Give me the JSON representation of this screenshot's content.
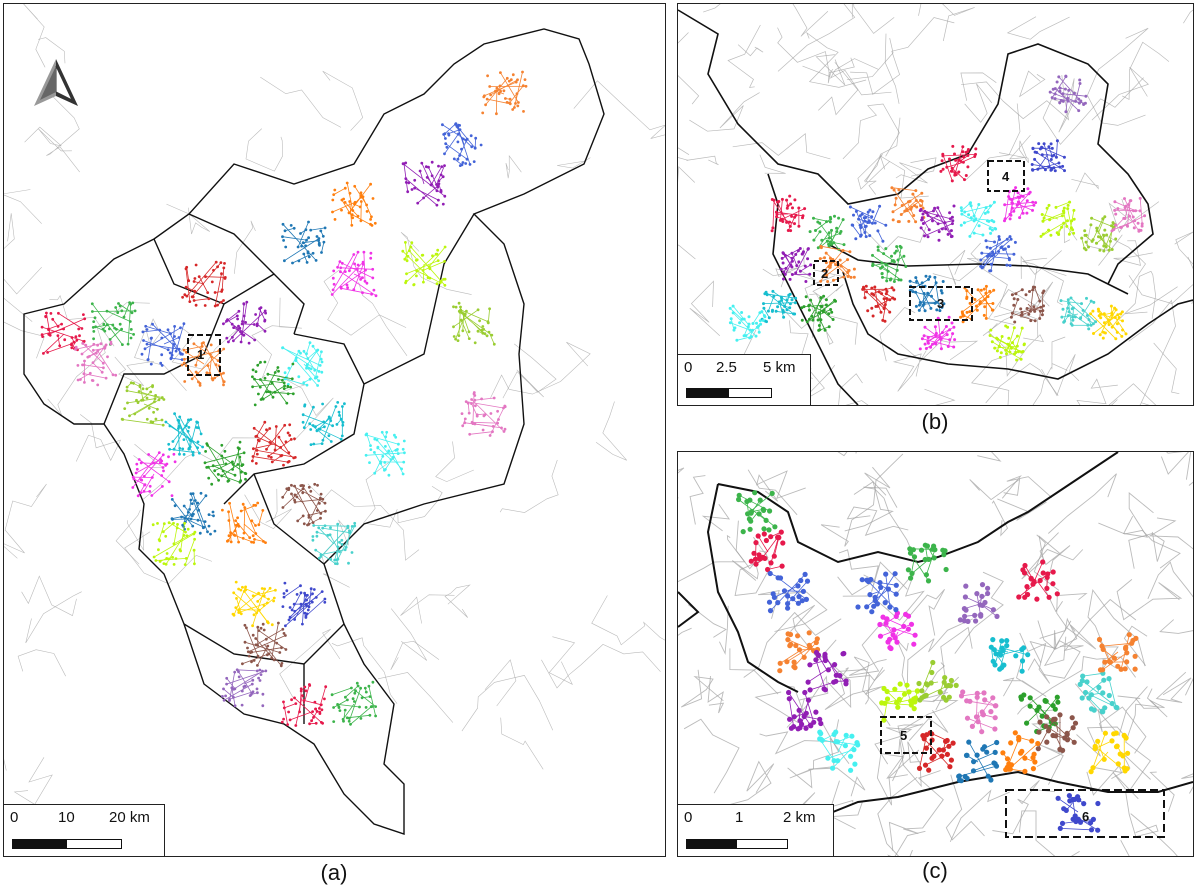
{
  "captions": {
    "a": "(a)",
    "b": "(b)",
    "c": "(c)"
  },
  "panel_a": {
    "scale": {
      "ticks": [
        "0",
        "10",
        "20 km"
      ]
    },
    "study_boxes": [
      "1"
    ],
    "north_arrow": "north-arrow-icon"
  },
  "panel_b": {
    "scale": {
      "ticks": [
        "0",
        "2.5",
        "5 km"
      ]
    },
    "study_boxes": [
      "2",
      "3",
      "4"
    ]
  },
  "panel_c": {
    "scale": {
      "ticks": [
        "0",
        "1",
        "2 km"
      ]
    },
    "study_boxes": [
      "5",
      "6"
    ]
  },
  "cluster_colors": [
    "#e6194b",
    "#3cb44b",
    "#4363d8",
    "#f58231",
    "#911eb4",
    "#46f0f0",
    "#f032e6",
    "#bcf60c",
    "#9acd32",
    "#e377c2",
    "#17becf",
    "#2ca02c",
    "#d62728",
    "#1f77b4",
    "#ff7f0e",
    "#8c564b",
    "#48d1cc",
    "#ffd700",
    "#3f48cc",
    "#9467bd"
  ],
  "road_color": "#9e9e9e",
  "boundary_color": "#111111"
}
